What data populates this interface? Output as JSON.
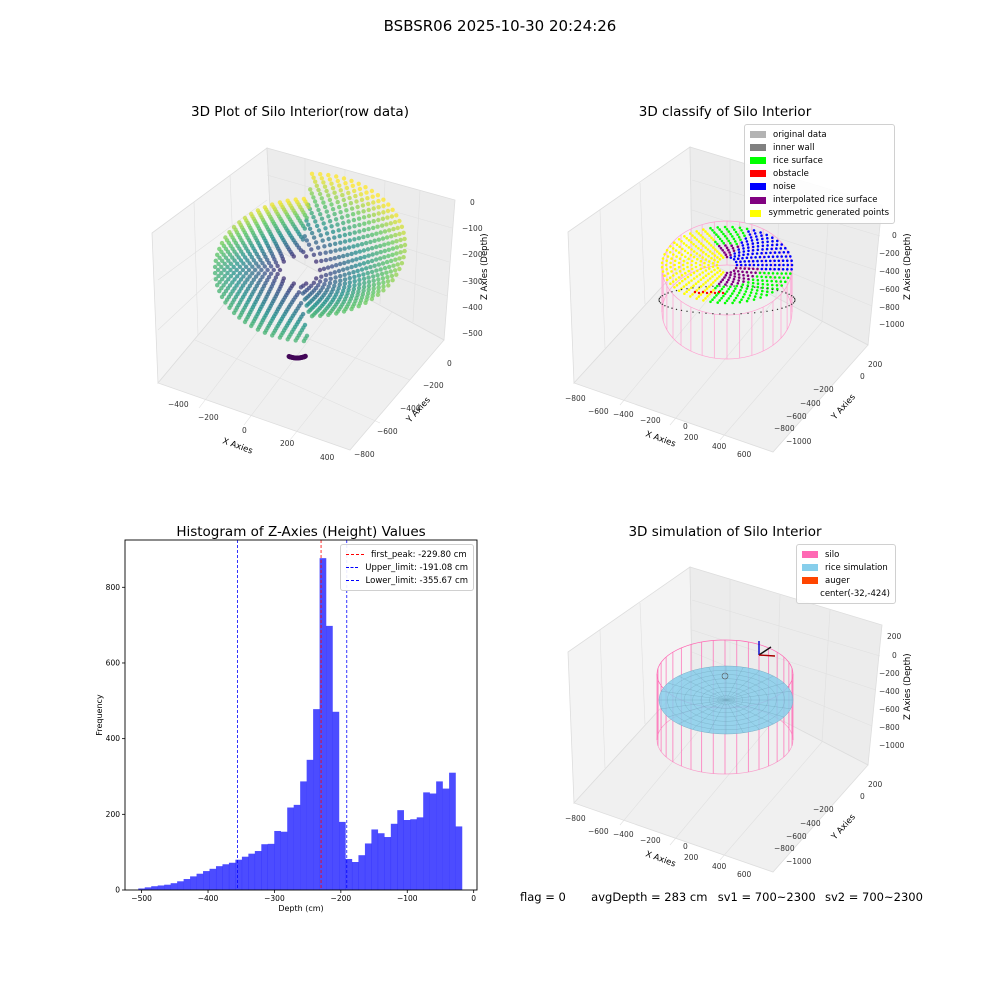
{
  "figure": {
    "suptitle": "BSBSR06 2025-10-30 20:24:26"
  },
  "panels": {
    "raw": {
      "title": "3D Plot of Silo Interior(row data)",
      "xlabel": "X Axies",
      "ylabel": "Y Axies",
      "zlabel": "Z Axies (Depth)",
      "xticks": [
        "−400",
        "−200",
        "0",
        "200",
        "400"
      ],
      "yticks": [
        "0",
        "−200",
        "−400",
        "−600",
        "−800"
      ],
      "zticks": [
        "0",
        "−100",
        "−200",
        "−300",
        "−400",
        "−500"
      ]
    },
    "classify": {
      "title": "3D classify of Silo Interior",
      "xlabel": "X Axies",
      "ylabel": "Y Axies",
      "zlabel": "Z Axies (Depth)",
      "xticks": [
        "−800",
        "−600",
        "−400",
        "−200",
        "0",
        "200",
        "400",
        "600"
      ],
      "yticks": [
        "200",
        "0",
        "−200",
        "−400",
        "−600",
        "−800",
        "−1000"
      ],
      "zticks": [
        "0",
        "−200",
        "−400",
        "−600",
        "−800",
        "−1000"
      ],
      "legend": [
        {
          "label": "original data",
          "color": "#b3b3b3"
        },
        {
          "label": "inner wall",
          "color": "#808080"
        },
        {
          "label": "rice surface",
          "color": "#00ff00"
        },
        {
          "label": "obstacle",
          "color": "#ff0000"
        },
        {
          "label": "noise",
          "color": "#0000ff"
        },
        {
          "label": "interpolated rice surface",
          "color": "#800080"
        },
        {
          "label": "symmetric generated points",
          "color": "#ffff00"
        }
      ]
    },
    "simulation": {
      "title": "3D simulation of Silo Interior",
      "xlabel": "X Axies",
      "ylabel": "Y Axies",
      "zlabel": "Z Axies (Depth)",
      "xticks": [
        "−800",
        "−600",
        "−400",
        "−200",
        "0",
        "200",
        "400",
        "600"
      ],
      "yticks": [
        "200",
        "0",
        "−200",
        "−400",
        "−600",
        "−800",
        "−1000"
      ],
      "zticks": [
        "200",
        "0",
        "−200",
        "−400",
        "−600",
        "−800",
        "−1000"
      ],
      "legend": [
        {
          "label": "silo",
          "color": "#ff69b4"
        },
        {
          "label": "rice simulation",
          "color": "#87ceeb"
        },
        {
          "label": "auger",
          "color": "#ff4500"
        },
        {
          "label": "center(-32,-424)",
          "color": ""
        }
      ]
    }
  },
  "chart_data": {
    "type": "bar",
    "title": "Histogram of Z-Axies (Height) Values",
    "xlabel": "Depth (cm)",
    "ylabel": "Frequency",
    "bar_color": "#0000ff",
    "xlim": [
      -525,
      5
    ],
    "ylim": [
      0,
      925
    ],
    "xticks": [
      -500,
      -400,
      -300,
      -200,
      -100,
      0
    ],
    "xtick_labels": [
      "−500",
      "−400",
      "−300",
      "−200",
      "−100",
      "0"
    ],
    "yticks": [
      0,
      200,
      400,
      600,
      800
    ],
    "yticks_labels": [
      "0",
      "200",
      "400",
      "600",
      "800"
    ],
    "bin_start": -505,
    "bin_width": 9.75,
    "values": [
      4,
      7,
      10,
      12,
      14,
      18,
      23,
      29,
      36,
      43,
      50,
      56,
      63,
      68,
      72,
      80,
      88,
      96,
      103,
      121,
      122,
      156,
      154,
      218,
      225,
      287,
      344,
      478,
      877,
      698,
      471,
      180,
      82,
      74,
      92,
      123,
      160,
      150,
      140,
      175,
      211,
      185,
      187,
      192,
      258,
      255,
      287,
      268,
      310,
      168
    ],
    "vlines": [
      {
        "label": "first_peak: -229.80 cm",
        "x": -229.8,
        "color": "#ff0000"
      },
      {
        "label": "Upper_limit: -191.08 cm",
        "x": -191.08,
        "color": "#0000ff"
      },
      {
        "label": "Lower_limit: -355.67 cm",
        "x": -355.67,
        "color": "#0000ff"
      }
    ],
    "legend_position": "upper right"
  },
  "status": {
    "flag": "flag = 0",
    "avg_depth": "avgDepth = 283 cm",
    "sv1": "sv1 = 700~2300",
    "sv2": "sv2 = 700~2300"
  }
}
